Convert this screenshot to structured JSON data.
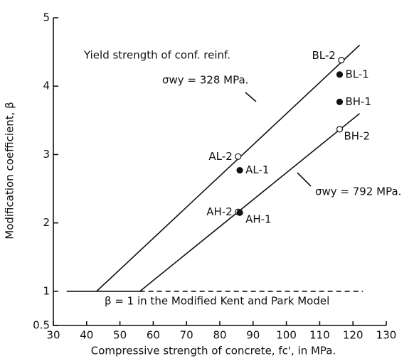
{
  "chart_data": {
    "type": "scatter",
    "x_label": "Compressive strength of concrete, fc', in MPa.",
    "y_label": "Modification coefficient, β",
    "xlim": [
      30,
      130
    ],
    "xticks": [
      30,
      40,
      50,
      60,
      70,
      80,
      90,
      100,
      110,
      120,
      130
    ],
    "ylim": [
      0.5,
      5
    ],
    "yticks": [
      0.5,
      1,
      2,
      3,
      4,
      5
    ],
    "annotations": [
      "Yield strength of conf. reinf.",
      "σwy = 328 MPa.",
      "σwy = 792 MPa.",
      "β = 1 in the Modified Kent and Park Model"
    ],
    "points": [
      {
        "label": "AL-2",
        "x": 85.5,
        "y": 2.97,
        "filled": false
      },
      {
        "label": "AL-1",
        "x": 86,
        "y": 2.77,
        "filled": true
      },
      {
        "label": "AH-2",
        "x": 85.5,
        "y": 2.16,
        "filled": false
      },
      {
        "label": "AH-1",
        "x": 86,
        "y": 2.15,
        "filled": true
      },
      {
        "label": "BL-2",
        "x": 116.5,
        "y": 4.38,
        "filled": false
      },
      {
        "label": "BL-1",
        "x": 116,
        "y": 4.17,
        "filled": true
      },
      {
        "label": "BH-1",
        "x": 116,
        "y": 3.77,
        "filled": true
      },
      {
        "label": "BH-2",
        "x": 116,
        "y": 3.37,
        "filled": false
      }
    ],
    "lines": [
      {
        "x": [
          43,
          122
        ],
        "y": [
          1,
          4.6
        ],
        "dashed": false
      },
      {
        "x": [
          56,
          122
        ],
        "y": [
          1,
          3.6
        ],
        "dashed": false
      },
      {
        "x": [
          34,
          56
        ],
        "y": [
          1,
          1
        ],
        "dashed": false
      },
      {
        "x": [
          56,
          123
        ],
        "y": [
          1,
          1
        ],
        "dashed": true
      }
    ]
  }
}
